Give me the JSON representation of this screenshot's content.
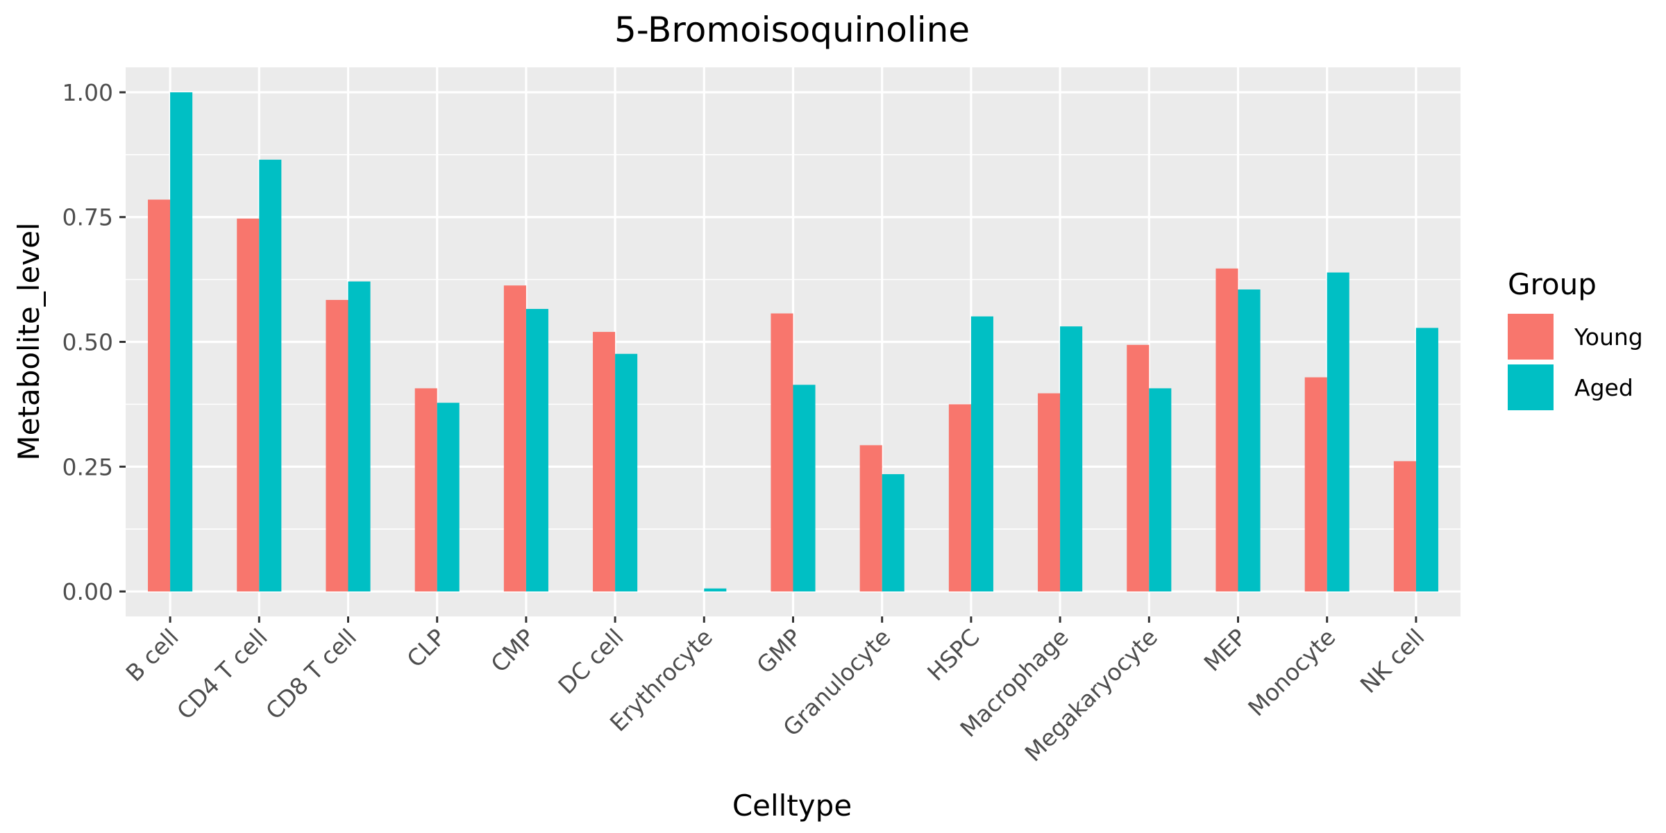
{
  "chart_data": {
    "type": "bar",
    "title": "5-Bromoisoquinoline",
    "xlabel": "Celltype",
    "ylabel": "Metabolite_level",
    "ylim": [
      -0.05,
      1.05
    ],
    "yticks": [
      0.0,
      0.25,
      0.5,
      0.75,
      1.0
    ],
    "ytick_labels": [
      "0.00",
      "0.25",
      "0.50",
      "0.75",
      "1.00"
    ],
    "grid": true,
    "legend": {
      "title": "Group",
      "placement": "right"
    },
    "categories": [
      "B cell",
      "CD4 T cell",
      "CD8 T cell",
      "CLP",
      "CMP",
      "DC cell",
      "Erythrocyte",
      "GMP",
      "Granulocyte",
      "HSPC",
      "Macrophage",
      "Megakaryocyte",
      "MEP",
      "Monocyte",
      "NK cell"
    ],
    "series": [
      {
        "name": "Young",
        "color": "#F8766D",
        "values": [
          0.785,
          0.747,
          0.584,
          0.407,
          0.613,
          0.52,
          0.0,
          0.557,
          0.293,
          0.375,
          0.397,
          0.494,
          0.647,
          0.429,
          0.261
        ]
      },
      {
        "name": "Aged",
        "color": "#00BFC4",
        "values": [
          1.0,
          0.865,
          0.621,
          0.378,
          0.566,
          0.476,
          0.006,
          0.414,
          0.235,
          0.551,
          0.531,
          0.407,
          0.605,
          0.639,
          0.528
        ]
      }
    ]
  }
}
